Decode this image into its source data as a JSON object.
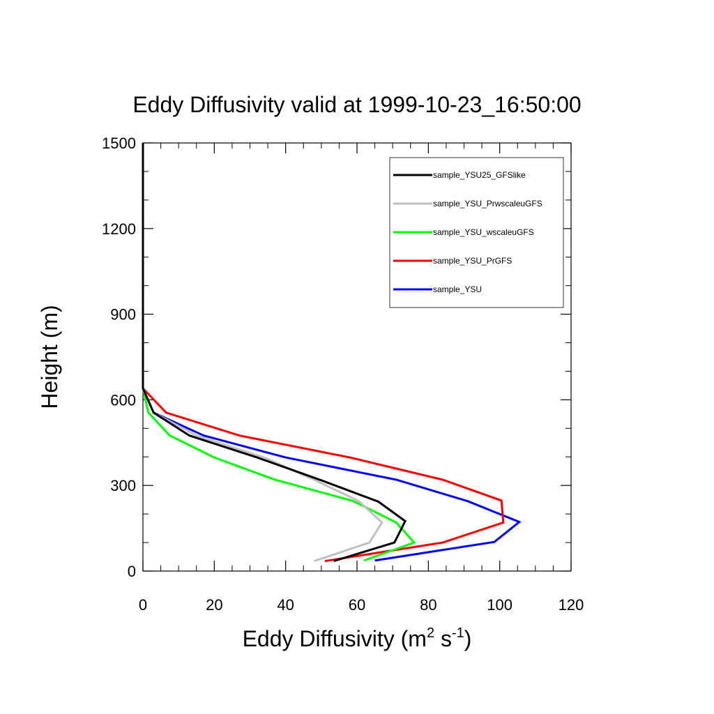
{
  "chart_data": {
    "type": "line",
    "title": "Eddy Diffusivity valid at 1999-10-23_16:50:00",
    "xlabel": "Eddy Diffusivity",
    "xlabel_unit_base": "m",
    "xlabel_unit_sup1": "2",
    "xlabel_unit_mid": " s",
    "xlabel_unit_sup2": "-1",
    "ylabel": "Height (m)",
    "xlim": [
      0,
      120
    ],
    "ylim": [
      0,
      1500
    ],
    "x_ticks": [
      "0",
      "20",
      "40",
      "60",
      "80",
      "100",
      "120"
    ],
    "y_ticks": [
      "0",
      "300",
      "600",
      "900",
      "1200",
      "1500"
    ],
    "x_tick_values": [
      0,
      20,
      40,
      60,
      80,
      100,
      120
    ],
    "y_tick_values": [
      0,
      300,
      600,
      900,
      1200,
      1500
    ],
    "x_minor_step": 5,
    "y_minor_step": 100,
    "grid": false,
    "legend_position": "top-right",
    "series": [
      {
        "name": "sample_YSU25_GFSlike",
        "color": "#000000",
        "points": [
          [
            53.5,
            35
          ],
          [
            70.5,
            100
          ],
          [
            73.5,
            175
          ],
          [
            66,
            243
          ],
          [
            50,
            318
          ],
          [
            32,
            398
          ],
          [
            13,
            475
          ],
          [
            3,
            555
          ],
          [
            0,
            640
          ],
          [
            0,
            760
          ],
          [
            0,
            900
          ],
          [
            0,
            1100
          ],
          [
            0,
            1300
          ],
          [
            0,
            1500
          ]
        ]
      },
      {
        "name": "sample_YSU_PrwscaleuGFS",
        "color": "#c0c0c0",
        "points": [
          [
            48,
            35
          ],
          [
            63.5,
            100
          ],
          [
            67,
            170
          ],
          [
            60.5,
            245
          ],
          [
            48,
            320
          ],
          [
            34,
            398
          ],
          [
            15,
            475
          ],
          [
            3,
            555
          ],
          [
            0,
            640
          ],
          [
            0,
            760
          ],
          [
            0,
            900
          ],
          [
            0,
            1100
          ],
          [
            0,
            1300
          ],
          [
            0,
            1500
          ]
        ]
      },
      {
        "name": "sample_YSU_wscaleuGFS",
        "color": "#00ff00",
        "points": [
          [
            62,
            37
          ],
          [
            76,
            100
          ],
          [
            71,
            170
          ],
          [
            59,
            245
          ],
          [
            37,
            320
          ],
          [
            20,
            398
          ],
          [
            7.5,
            475
          ],
          [
            1.5,
            555
          ],
          [
            0,
            640
          ],
          [
            0,
            760
          ],
          [
            0,
            900
          ],
          [
            0,
            1100
          ],
          [
            0,
            1300
          ],
          [
            0,
            1500
          ]
        ]
      },
      {
        "name": "sample_YSU_PrGFS",
        "color": "#ff0000",
        "points": [
          [
            51,
            35
          ],
          [
            84,
            100
          ],
          [
            101,
            170
          ],
          [
            100.5,
            247
          ],
          [
            84,
            320
          ],
          [
            58,
            398
          ],
          [
            27,
            475
          ],
          [
            6.5,
            555
          ],
          [
            0,
            640
          ],
          [
            0,
            760
          ],
          [
            0,
            900
          ],
          [
            0,
            1100
          ],
          [
            0,
            1300
          ],
          [
            0,
            1500
          ]
        ]
      },
      {
        "name": "sample_YSU",
        "color": "#0000ff",
        "points": [
          [
            65,
            37
          ],
          [
            98.5,
            102
          ],
          [
            105.5,
            172
          ],
          [
            91,
            245
          ],
          [
            71,
            320
          ],
          [
            40,
            398
          ],
          [
            17,
            475
          ],
          [
            3,
            555
          ],
          [
            0,
            640
          ],
          [
            0,
            760
          ],
          [
            0,
            900
          ],
          [
            0,
            1100
          ],
          [
            0,
            1300
          ],
          [
            0,
            1500
          ]
        ]
      }
    ]
  }
}
